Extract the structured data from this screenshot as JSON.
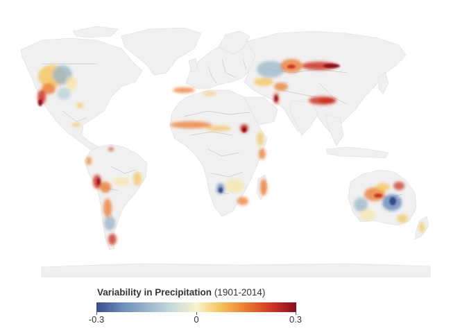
{
  "legend": {
    "title": "Variability in Precipitation",
    "years": "(1901-2014)",
    "min_label": "-0.3",
    "mid_label": "0",
    "max_label": "0.3",
    "scale": {
      "min": -0.3,
      "max": 0.3,
      "colors": [
        "#3b4a8c",
        "#6f92bd",
        "#bcd3d8",
        "#f7f4cf",
        "#f5c45a",
        "#ec7a2e",
        "#cc3424",
        "#8b0c1e"
      ]
    }
  },
  "map": {
    "land_color": "#f0f0f0",
    "ocean_color": "#ffffff",
    "border_color": "#b5b5b5"
  }
}
